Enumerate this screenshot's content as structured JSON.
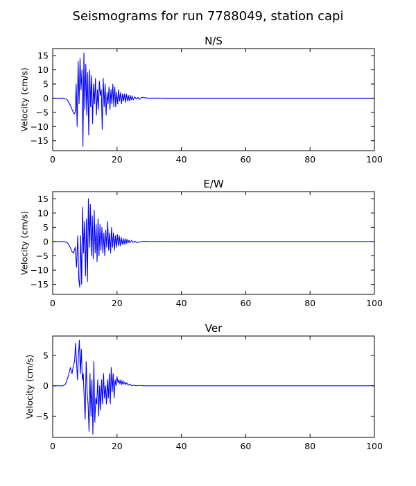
{
  "title": "Seismograms for run 7788049, station capi",
  "line_color": "#0000ff",
  "chart_data": [
    {
      "type": "line",
      "title": "N/S",
      "xlabel": "",
      "ylabel": "Velocity (cm/s)",
      "xlim": [
        0,
        100
      ],
      "ylim": [
        -18.5,
        17.5
      ],
      "xticks": [
        0,
        20,
        40,
        60,
        80,
        100
      ],
      "yticks": [
        -15,
        -10,
        -5,
        0,
        5,
        10,
        15
      ],
      "grid": false,
      "series": [
        {
          "x": [
            0,
            3.5,
            4.5,
            5.5,
            6.2,
            6.7,
            7.0,
            7.3,
            7.6,
            7.9,
            8.2,
            8.5,
            8.8,
            9.1,
            9.4,
            9.7,
            10.0,
            10.3,
            10.6,
            10.9,
            11.2,
            11.5,
            11.8,
            12.1,
            12.4,
            12.7,
            13.0,
            13.3,
            13.6,
            13.9,
            14.2,
            14.5,
            14.8,
            15.1,
            15.4,
            15.7,
            16.0,
            16.3,
            16.6,
            16.9,
            17.2,
            17.5,
            17.8,
            18.1,
            18.4,
            18.7,
            19.0,
            19.3,
            19.6,
            19.9,
            20.2,
            20.5,
            20.8,
            21.1,
            21.4,
            21.7,
            22.0,
            22.3,
            22.6,
            22.9,
            23.2,
            23.5,
            23.8,
            24.1,
            24.4,
            24.7,
            25.0,
            25.5,
            26.0,
            26.5,
            27.0,
            27.5,
            28.0,
            29.0,
            30.0,
            32.0,
            35.0,
            40.0,
            60.0,
            80.0,
            100.0
          ],
          "y": [
            0,
            0,
            -0.5,
            -2.5,
            -4.5,
            -5.5,
            -5,
            5,
            -10,
            13,
            -2,
            14,
            3,
            10,
            -17,
            16,
            -4,
            12,
            -6,
            9,
            -13,
            10,
            -3,
            8,
            -9,
            5,
            -2,
            7,
            -6,
            3,
            -4,
            6,
            1,
            3,
            -11,
            7,
            -3,
            5,
            -6,
            2,
            -2,
            4,
            -4,
            3,
            -2,
            5,
            -3,
            4,
            -3,
            2,
            -2,
            3,
            -1,
            2,
            -2,
            1.5,
            -1,
            1.5,
            -1.5,
            1.5,
            -1,
            1,
            -1,
            1,
            -0.6,
            0.8,
            -0.6,
            0.5,
            -0.3,
            0.3,
            -0.4,
            0.2,
            0.3,
            0.1,
            0,
            0.05,
            0,
            0,
            0,
            0,
            0
          ]
        }
      ]
    },
    {
      "type": "line",
      "title": "E/W",
      "xlabel": "",
      "ylabel": "Velocity (cm/s)",
      "xlim": [
        0,
        100
      ],
      "ylim": [
        -18.5,
        17.5
      ],
      "xticks": [
        0,
        20,
        40,
        60,
        80,
        100
      ],
      "yticks": [
        -15,
        -10,
        -5,
        0,
        5,
        10,
        15
      ],
      "grid": false,
      "series": [
        {
          "x": [
            0,
            3.5,
            4.5,
            5.2,
            6.0,
            6.5,
            7.0,
            7.4,
            7.8,
            8.1,
            8.4,
            8.7,
            9.0,
            9.3,
            9.6,
            9.9,
            10.2,
            10.5,
            10.8,
            11.1,
            11.4,
            11.7,
            12.0,
            12.3,
            12.6,
            12.9,
            13.2,
            13.5,
            13.8,
            14.1,
            14.4,
            14.7,
            15.0,
            15.3,
            15.6,
            15.9,
            16.2,
            16.5,
            16.8,
            17.1,
            17.4,
            17.7,
            18.0,
            18.3,
            18.6,
            18.9,
            19.2,
            19.5,
            19.8,
            20.1,
            20.4,
            20.7,
            21.0,
            21.3,
            21.6,
            21.9,
            22.2,
            22.5,
            22.8,
            23.1,
            23.4,
            23.7,
            24.0,
            24.5,
            25.0,
            25.5,
            26.0,
            27.0,
            28.0,
            29.0,
            30.0,
            32.0,
            35.0,
            40.0,
            60.0,
            80.0,
            100.0
          ],
          "y": [
            0,
            0,
            -0.3,
            -1.5,
            -3.5,
            -4,
            -2,
            -9,
            2,
            -13,
            -16,
            2,
            -15,
            12,
            -4,
            7,
            -12,
            8,
            -14,
            15,
            -2,
            13,
            -5,
            9,
            -6,
            11,
            -4,
            6,
            -7,
            8,
            -5,
            6,
            -3,
            5,
            -4,
            3,
            -5,
            4,
            -2,
            7,
            -3,
            3,
            -4,
            5,
            -2,
            3,
            -3,
            2,
            -2,
            2.5,
            -1.5,
            2,
            -1.5,
            1.5,
            -1,
            1,
            -1,
            1,
            -0.8,
            0.8,
            -0.5,
            0.5,
            -0.4,
            0.4,
            -0.3,
            0.2,
            -0.3,
            -0.2,
            0.1,
            0.1,
            0,
            0.05,
            0,
            0,
            0,
            0,
            0
          ]
        }
      ]
    },
    {
      "type": "line",
      "title": "Ver",
      "xlabel": "",
      "ylabel": "Velocity (cm/s)",
      "xlim": [
        0,
        100
      ],
      "ylim": [
        -8.5,
        8.2
      ],
      "xticks": [
        0,
        20,
        40,
        60,
        80,
        100
      ],
      "yticks": [
        -5,
        0,
        5
      ],
      "grid": false,
      "series": [
        {
          "x": [
            0,
            3.2,
            4.0,
            4.8,
            5.5,
            6.0,
            6.5,
            6.8,
            7.1,
            7.4,
            7.7,
            8.0,
            8.3,
            8.6,
            8.9,
            9.2,
            9.5,
            9.8,
            10.1,
            10.4,
            10.7,
            11.0,
            11.3,
            11.6,
            11.9,
            12.2,
            12.5,
            12.8,
            13.1,
            13.4,
            13.7,
            14.0,
            14.3,
            14.6,
            14.9,
            15.2,
            15.5,
            15.8,
            16.1,
            16.4,
            16.7,
            17.0,
            17.3,
            17.6,
            17.9,
            18.2,
            18.5,
            18.8,
            19.1,
            19.4,
            19.7,
            20.0,
            20.3,
            20.6,
            20.9,
            21.2,
            21.5,
            21.8,
            22.1,
            22.4,
            22.7,
            23.0,
            23.5,
            24.0,
            24.5,
            25.0,
            26.0,
            27.0,
            28.0,
            30.0,
            35.0,
            40.0,
            60.0,
            80.0,
            100.0
          ],
          "y": [
            0,
            0,
            0.3,
            1.5,
            3,
            2,
            3.5,
            4,
            7,
            4,
            1,
            5,
            7.5,
            2,
            6,
            1,
            2,
            -2,
            -5.5,
            4,
            -1,
            -3,
            -7.5,
            2,
            -5,
            1,
            -8,
            4,
            -6,
            -2,
            -3,
            1,
            -5,
            0,
            -4,
            1,
            -3,
            2,
            -2,
            0,
            -3,
            1,
            -2,
            2,
            -3,
            3,
            -1,
            2,
            -2,
            1,
            0,
            1.5,
            0.5,
            1,
            0.3,
            1,
            0.2,
            0.8,
            0.3,
            0.6,
            0.2,
            0.5,
            0.1,
            0.3,
            0,
            0.1,
            0,
            0.05,
            0,
            0,
            0,
            0,
            0,
            0,
            0
          ]
        }
      ]
    }
  ]
}
